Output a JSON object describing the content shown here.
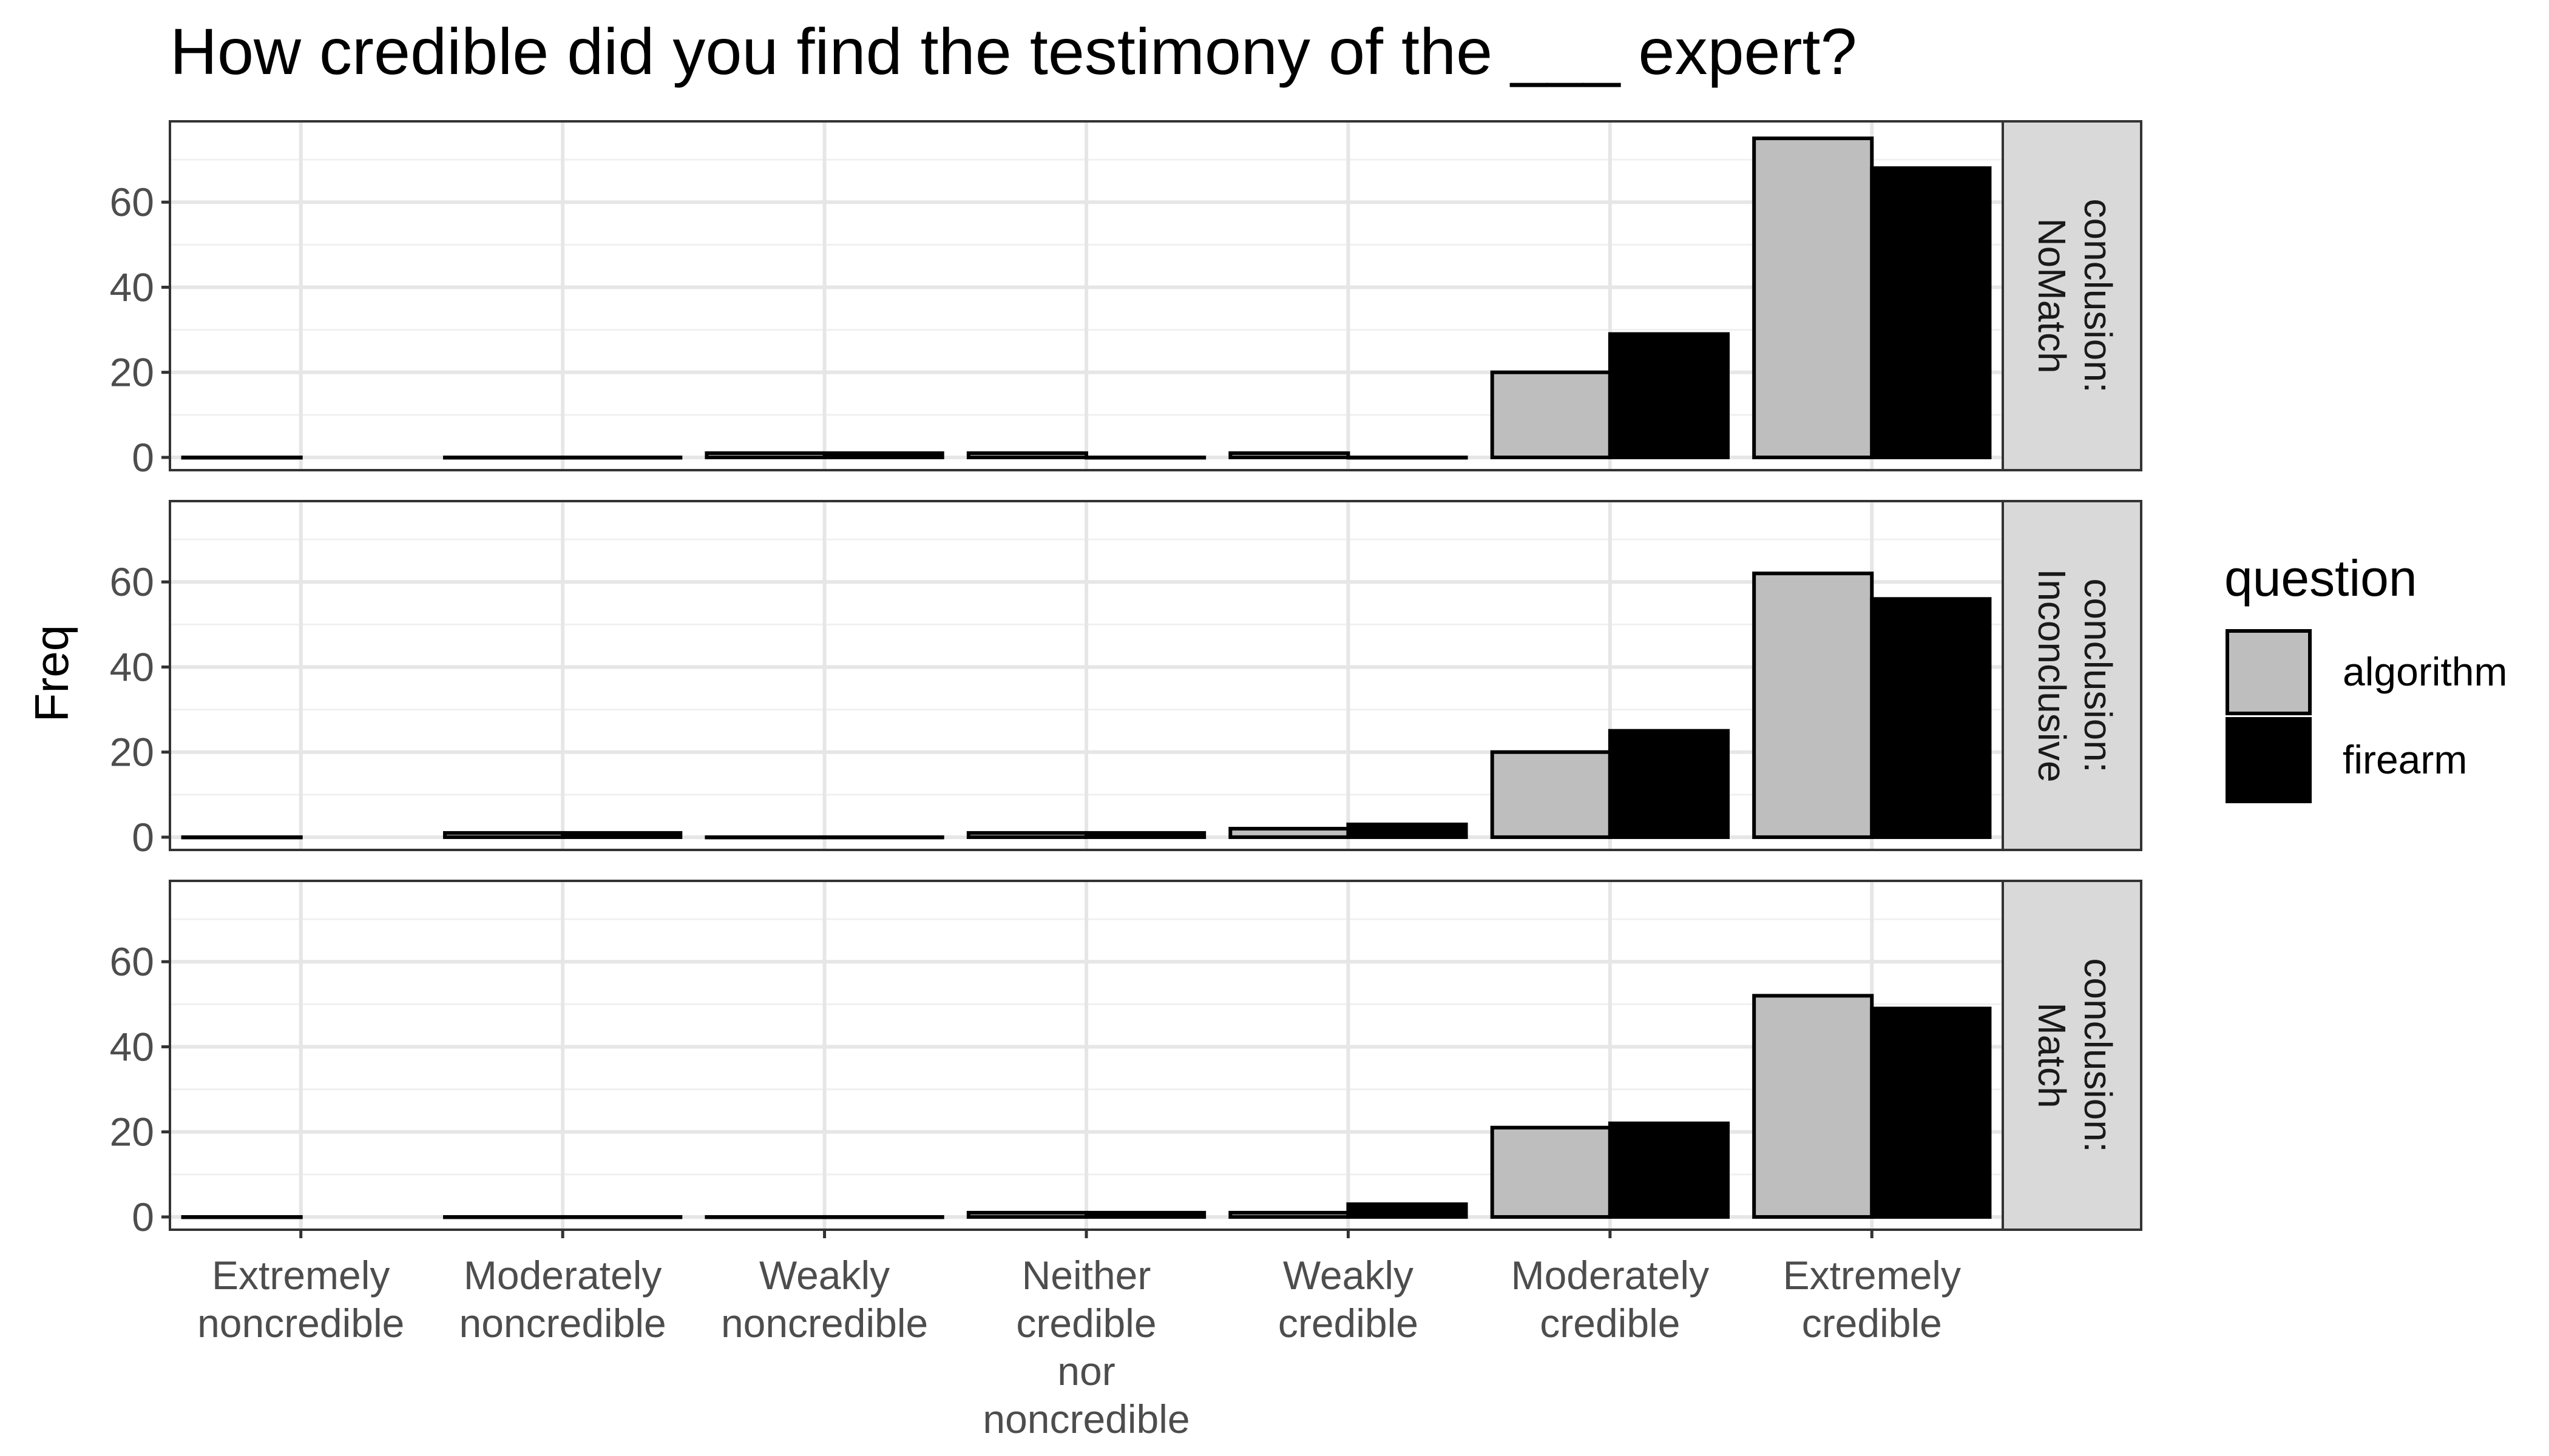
{
  "chart_data": {
    "type": "bar",
    "title": "How credible did you find the testimony of the ___ expert?",
    "ylabel": "Freq",
    "xlabel": "",
    "ylim": [
      0,
      75
    ],
    "yticks": [
      0,
      20,
      40,
      60
    ],
    "grid": true,
    "legend_position": "right",
    "legend_title": "question",
    "categories": [
      [
        "Extremely",
        "noncredible"
      ],
      [
        "Moderately",
        "noncredible"
      ],
      [
        "Weakly",
        "noncredible"
      ],
      [
        "Neither",
        "credible",
        "nor",
        "noncredible"
      ],
      [
        "Weakly",
        "credible"
      ],
      [
        "Moderately",
        "credible"
      ],
      [
        "Extremely",
        "credible"
      ]
    ],
    "series_meta": [
      {
        "name": "algorithm",
        "color": "#bebebe"
      },
      {
        "name": "firearm",
        "color": "#000000"
      }
    ],
    "panels": [
      {
        "strip": [
          "conclusion:",
          "NoMatch"
        ],
        "series": [
          {
            "name": "algorithm",
            "values": [
              0,
              0,
              1,
              1,
              1,
              20,
              75
            ]
          },
          {
            "name": "firearm",
            "values": [
              null,
              0,
              1,
              0,
              0,
              29,
              68
            ]
          }
        ]
      },
      {
        "strip": [
          "conclusion:",
          "Inconclusive"
        ],
        "series": [
          {
            "name": "algorithm",
            "values": [
              0,
              1,
              0,
              1,
              2,
              20,
              62
            ]
          },
          {
            "name": "firearm",
            "values": [
              null,
              1,
              0,
              1,
              3,
              25,
              56
            ]
          }
        ]
      },
      {
        "strip": [
          "conclusion:",
          "Match"
        ],
        "series": [
          {
            "name": "algorithm",
            "values": [
              0,
              0,
              0,
              1,
              1,
              21,
              52
            ]
          },
          {
            "name": "firearm",
            "values": [
              null,
              0,
              0,
              1,
              3,
              22,
              49
            ]
          }
        ]
      }
    ]
  }
}
